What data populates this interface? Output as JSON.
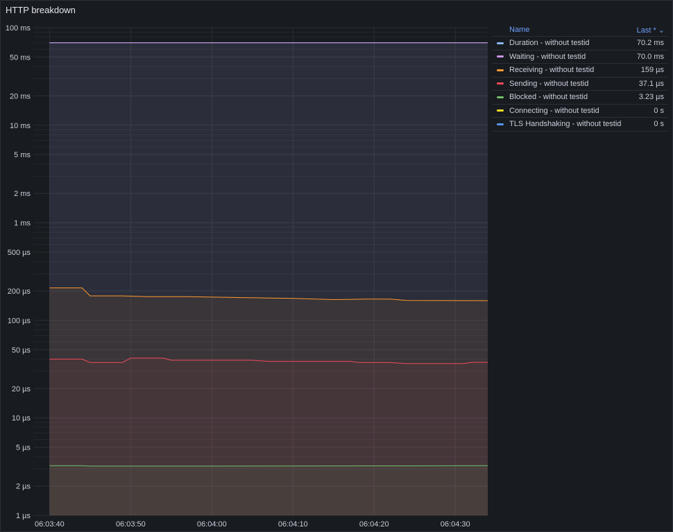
{
  "panel": {
    "title": "HTTP breakdown"
  },
  "legend": {
    "name_header": "Name",
    "value_header": "Last * ⌄",
    "items": [
      {
        "name": "Duration - without testid",
        "value": "70.2 ms",
        "color": "#8ab8ff"
      },
      {
        "name": "Waiting - without testid",
        "value": "70.0 ms",
        "color": "#ca95e5"
      },
      {
        "name": "Receiving - without testid",
        "value": "159 µs",
        "color": "#ff9830"
      },
      {
        "name": "Sending - without testid",
        "value": "37.1 µs",
        "color": "#f2495c"
      },
      {
        "name": "Blocked - without testid",
        "value": "3.23 µs",
        "color": "#73bf69"
      },
      {
        "name": "Connecting - without testid",
        "value": "0 s",
        "color": "#fade2a"
      },
      {
        "name": "TLS Handshaking - without testid",
        "value": "0 s",
        "color": "#5794f2"
      }
    ]
  },
  "chart_data": {
    "type": "line",
    "title": "HTTP breakdown",
    "y_scale": "log",
    "y_unit": "seconds",
    "ylim": [
      1e-06,
      0.1
    ],
    "yticks": [
      {
        "v": 0.1,
        "label": "100 ms"
      },
      {
        "v": 0.05,
        "label": "50 ms"
      },
      {
        "v": 0.02,
        "label": "20 ms"
      },
      {
        "v": 0.01,
        "label": "10 ms"
      },
      {
        "v": 0.005,
        "label": "5 ms"
      },
      {
        "v": 0.002,
        "label": "2 ms"
      },
      {
        "v": 0.001,
        "label": "1 ms"
      },
      {
        "v": 0.0005,
        "label": "500 µs"
      },
      {
        "v": 0.0002,
        "label": "200 µs"
      },
      {
        "v": 0.0001,
        "label": "100 µs"
      },
      {
        "v": 5e-05,
        "label": "50 µs"
      },
      {
        "v": 2e-05,
        "label": "20 µs"
      },
      {
        "v": 1e-05,
        "label": "10 µs"
      },
      {
        "v": 5e-06,
        "label": "5 µs"
      },
      {
        "v": 2e-06,
        "label": "2 µs"
      },
      {
        "v": 1e-06,
        "label": "1 µs"
      }
    ],
    "xlim": [
      "06:03:38",
      "06:04:34"
    ],
    "xticks": [
      "06:03:40",
      "06:03:50",
      "06:04:00",
      "06:04:10",
      "06:04:20",
      "06:04:30"
    ],
    "grid": true,
    "legend_position": "right",
    "series": [
      {
        "name": "Duration - without testid",
        "color": "#8ab8ff",
        "fill": true,
        "points": [
          [
            "06:03:40",
            0.0702
          ],
          [
            "06:04:34",
            0.0702
          ]
        ]
      },
      {
        "name": "Waiting - without testid",
        "color": "#ca95e5",
        "fill": true,
        "points": [
          [
            "06:03:40",
            0.07
          ],
          [
            "06:04:34",
            0.07
          ]
        ]
      },
      {
        "name": "Receiving - without testid",
        "color": "#ff9830",
        "fill": true,
        "points": [
          [
            "06:03:40",
            0.000215
          ],
          [
            "06:03:44",
            0.000215
          ],
          [
            "06:03:45",
            0.000178
          ],
          [
            "06:03:49",
            0.000178
          ],
          [
            "06:03:52",
            0.000175
          ],
          [
            "06:03:57",
            0.000175
          ],
          [
            "06:04:02",
            0.000172
          ],
          [
            "06:04:06",
            0.00017
          ],
          [
            "06:04:10",
            0.000168
          ],
          [
            "06:04:15",
            0.000163
          ],
          [
            "06:04:19",
            0.000165
          ],
          [
            "06:04:22",
            0.000165
          ],
          [
            "06:04:24",
            0.00016
          ],
          [
            "06:04:34",
            0.000159
          ]
        ]
      },
      {
        "name": "Sending - without testid",
        "color": "#f2495c",
        "fill": true,
        "points": [
          [
            "06:03:40",
            4e-05
          ],
          [
            "06:03:44",
            4e-05
          ],
          [
            "06:03:45",
            3.7e-05
          ],
          [
            "06:03:49",
            3.7e-05
          ],
          [
            "06:03:50",
            4.1e-05
          ],
          [
            "06:03:54",
            4.1e-05
          ],
          [
            "06:03:55",
            3.9e-05
          ],
          [
            "06:04:05",
            3.9e-05
          ],
          [
            "06:04:07",
            3.8e-05
          ],
          [
            "06:04:11",
            3.8e-05
          ],
          [
            "06:04:13",
            3.8e-05
          ],
          [
            "06:04:17",
            3.8e-05
          ],
          [
            "06:04:18",
            3.7e-05
          ],
          [
            "06:04:22",
            3.7e-05
          ],
          [
            "06:04:24",
            3.6e-05
          ],
          [
            "06:04:31",
            3.6e-05
          ],
          [
            "06:04:32",
            3.71e-05
          ],
          [
            "06:04:34",
            3.71e-05
          ]
        ]
      },
      {
        "name": "Blocked - without testid",
        "color": "#73bf69",
        "fill": true,
        "points": [
          [
            "06:03:40",
            3.23e-06
          ],
          [
            "06:03:44",
            3.23e-06
          ],
          [
            "06:03:45",
            3.2e-06
          ],
          [
            "06:04:00",
            3.2e-06
          ],
          [
            "06:04:34",
            3.23e-06
          ]
        ]
      },
      {
        "name": "Connecting - without testid",
        "color": "#fade2a",
        "fill": false,
        "points": []
      },
      {
        "name": "TLS Handshaking - without testid",
        "color": "#5794f2",
        "fill": false,
        "points": []
      }
    ]
  }
}
